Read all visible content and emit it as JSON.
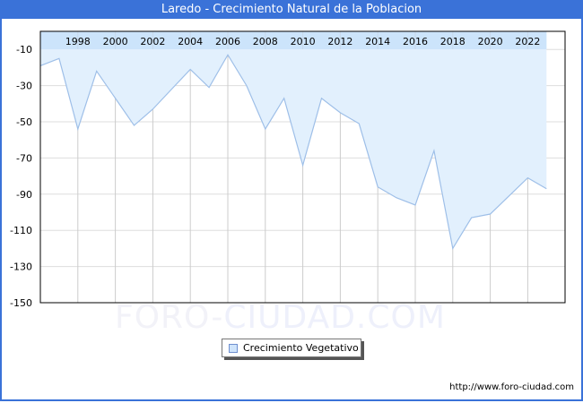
{
  "header": {
    "title": "Laredo - Crecimiento Natural de la Poblacion"
  },
  "watermark": {
    "part1": "FORO-",
    "part2": "CIUDAD.COM"
  },
  "legend": {
    "label": "Crecimiento Vegetativo"
  },
  "footer": {
    "url": "http://www.foro-ciudad.com"
  },
  "colors": {
    "title_bg": "#3a72d8",
    "area_fill": "#e2f0fd",
    "band_fill": "#cce4fb",
    "line": "#9ebfe8",
    "grid": "#dddddd"
  },
  "chart_data": {
    "type": "area",
    "title": "Laredo - Crecimiento Natural de la Poblacion",
    "xlabel": "",
    "ylabel": "",
    "x": [
      1996,
      1997,
      1998,
      1999,
      2000,
      2001,
      2002,
      2003,
      2004,
      2005,
      2006,
      2007,
      2008,
      2009,
      2010,
      2011,
      2012,
      2013,
      2014,
      2015,
      2016,
      2017,
      2018,
      2019,
      2020,
      2021,
      2022,
      2023
    ],
    "series": [
      {
        "name": "Crecimiento Vegetativo",
        "values": [
          -19,
          -15,
          -54,
          -22,
          -37,
          -52,
          -43,
          -32,
          -21,
          -31,
          -13,
          -30,
          -54,
          -37,
          -74,
          -37,
          -45,
          -51,
          -86,
          -92,
          -96,
          -66,
          -120,
          -103,
          -101,
          -91,
          -81,
          -87
        ]
      }
    ],
    "xticks": [
      1998,
      2000,
      2002,
      2004,
      2006,
      2008,
      2010,
      2012,
      2014,
      2016,
      2018,
      2020,
      2022
    ],
    "yticks": [
      -10,
      -30,
      -50,
      -70,
      -90,
      -110,
      -130,
      -150
    ],
    "ylim": [
      -150,
      0
    ],
    "xlim": [
      1996,
      2024
    ],
    "grid": true,
    "legend_position": "bottom-center"
  }
}
